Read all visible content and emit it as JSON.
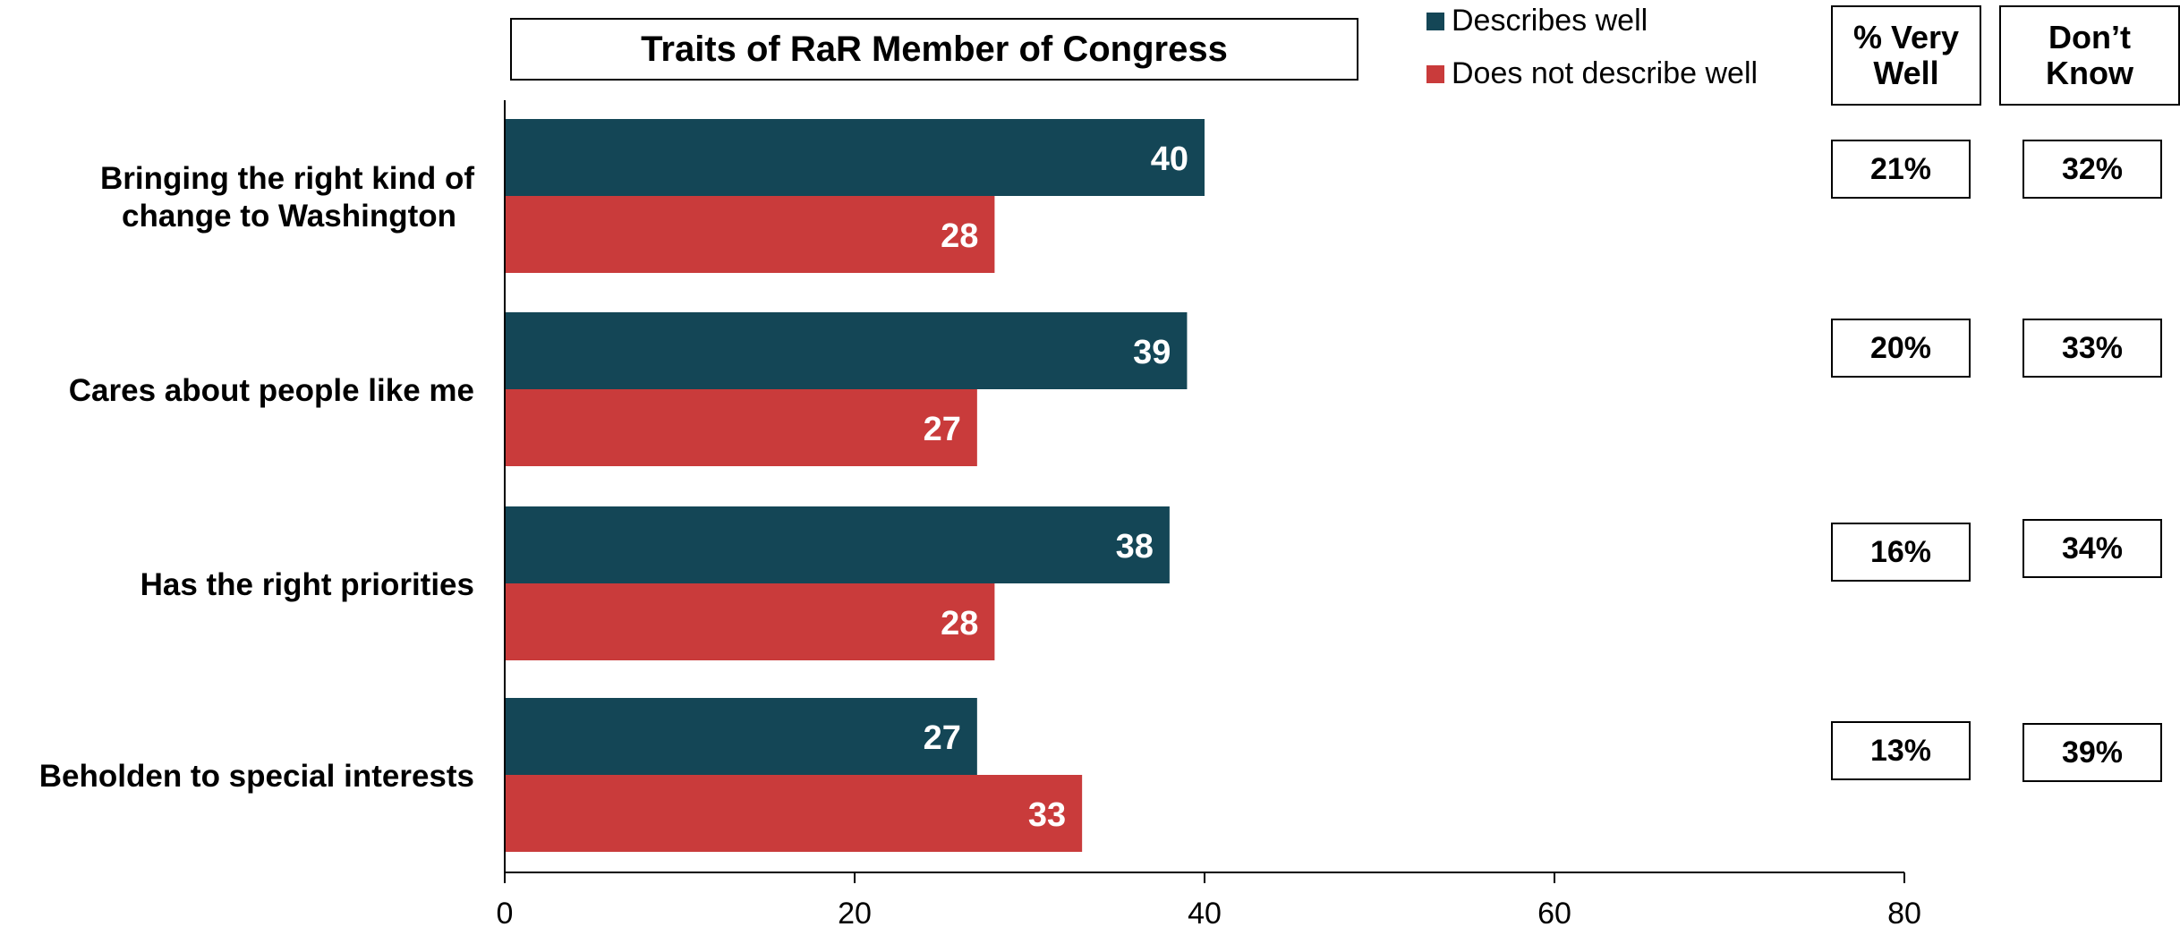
{
  "chart_data": {
    "type": "bar",
    "orientation": "horizontal",
    "title": "Traits of RaR Member of Congress",
    "categories": [
      "Bringing the right kind of\nchange to Washington",
      "Cares about people like me",
      "Has the right priorities",
      "Beholden to special interests"
    ],
    "series": [
      {
        "name": "Describes well",
        "color": "#144656",
        "values": [
          40,
          39,
          38,
          27
        ]
      },
      {
        "name": "Does not describe well",
        "color": "#c93b3b",
        "values": [
          28,
          27,
          28,
          33
        ]
      }
    ],
    "xlim": [
      0,
      80
    ],
    "xticks": [
      0,
      20,
      40,
      60,
      80
    ],
    "legend_placement": "top-right",
    "grid": false
  },
  "side_table": {
    "headers": [
      "% Very\nWell",
      "Don’t\nKnow"
    ],
    "rows": [
      [
        "21%",
        "32%"
      ],
      [
        "20%",
        "33%"
      ],
      [
        "16%",
        "34%"
      ],
      [
        "13%",
        "39%"
      ]
    ]
  }
}
